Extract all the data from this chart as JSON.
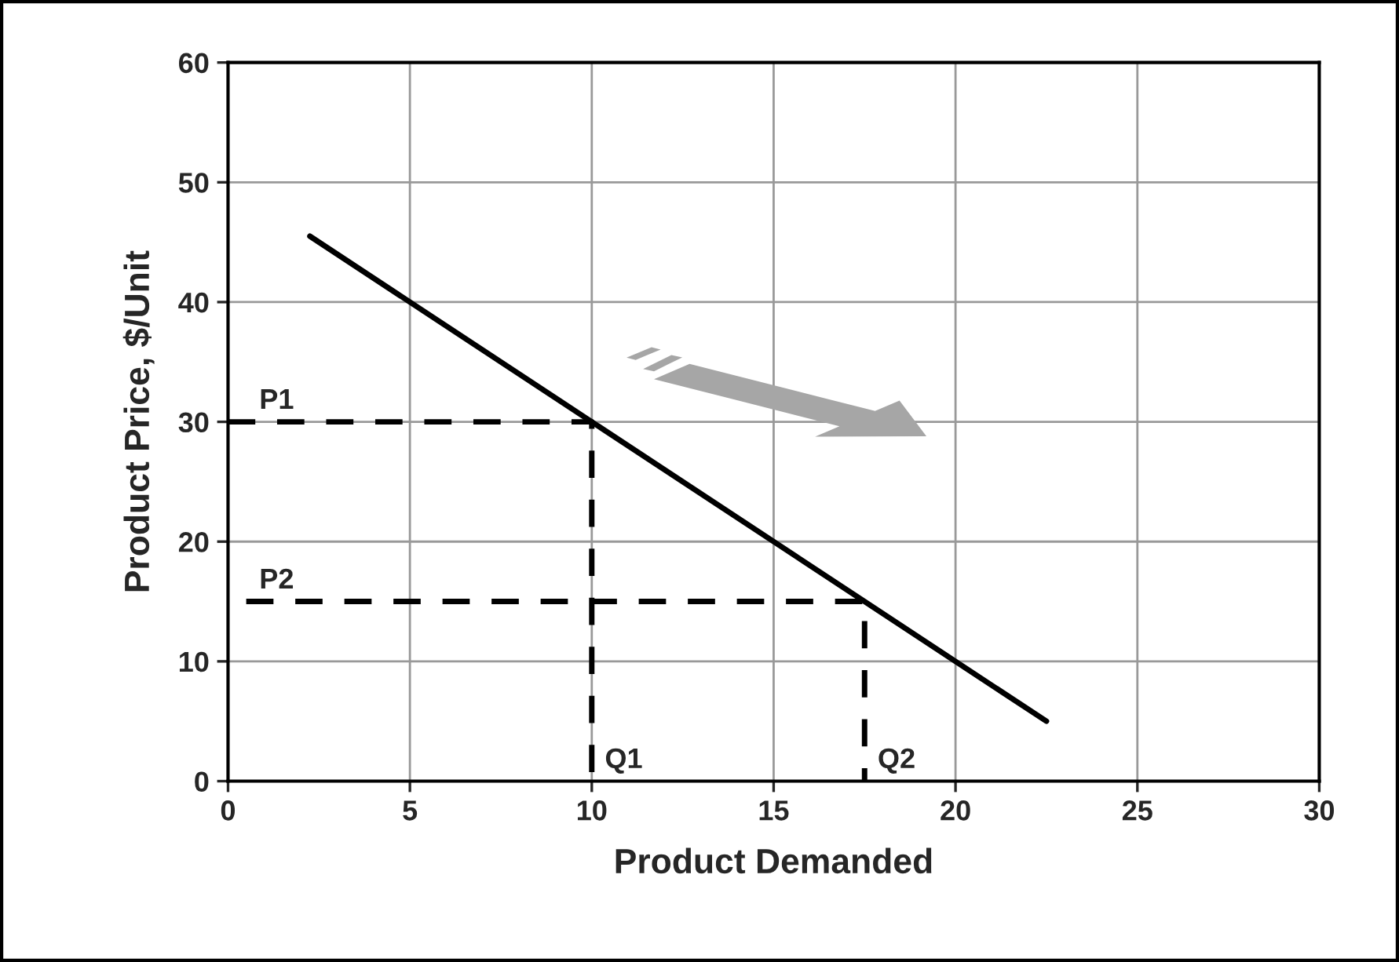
{
  "chart_data": {
    "type": "line",
    "xlabel": "Product Demanded",
    "ylabel": "Product Price, $/Unit",
    "series": [
      {
        "x": [
          2.25,
          22.5
        ],
        "values": [
          45.5,
          5
        ],
        "color": "#000000",
        "line_style": "solid"
      },
      {
        "x": [
          0,
          10,
          10
        ],
        "values": [
          30,
          30,
          0
        ],
        "color": "#000000",
        "line_style": "dashed"
      },
      {
        "x": [
          0.5,
          17.5,
          17.5
        ],
        "values": [
          15,
          15,
          0
        ],
        "color": "#000000",
        "line_style": "dashed"
      }
    ],
    "annotations": [
      {
        "text": "P1",
        "x": 0.5,
        "y": 30
      },
      {
        "text": "P2",
        "x": 0.5,
        "y": 15
      },
      {
        "text": "Q1",
        "x": 10,
        "y": 0
      },
      {
        "text": "Q2",
        "x": 17.5,
        "y": 0
      }
    ],
    "xlim": [
      0,
      30
    ],
    "xticks": [
      0,
      5,
      10,
      15,
      20,
      25,
      30
    ],
    "ylim": [
      0,
      60
    ],
    "yticks": [
      0,
      10,
      20,
      30,
      40,
      50,
      60
    ],
    "grid": true,
    "legend": false,
    "marker": "none"
  }
}
